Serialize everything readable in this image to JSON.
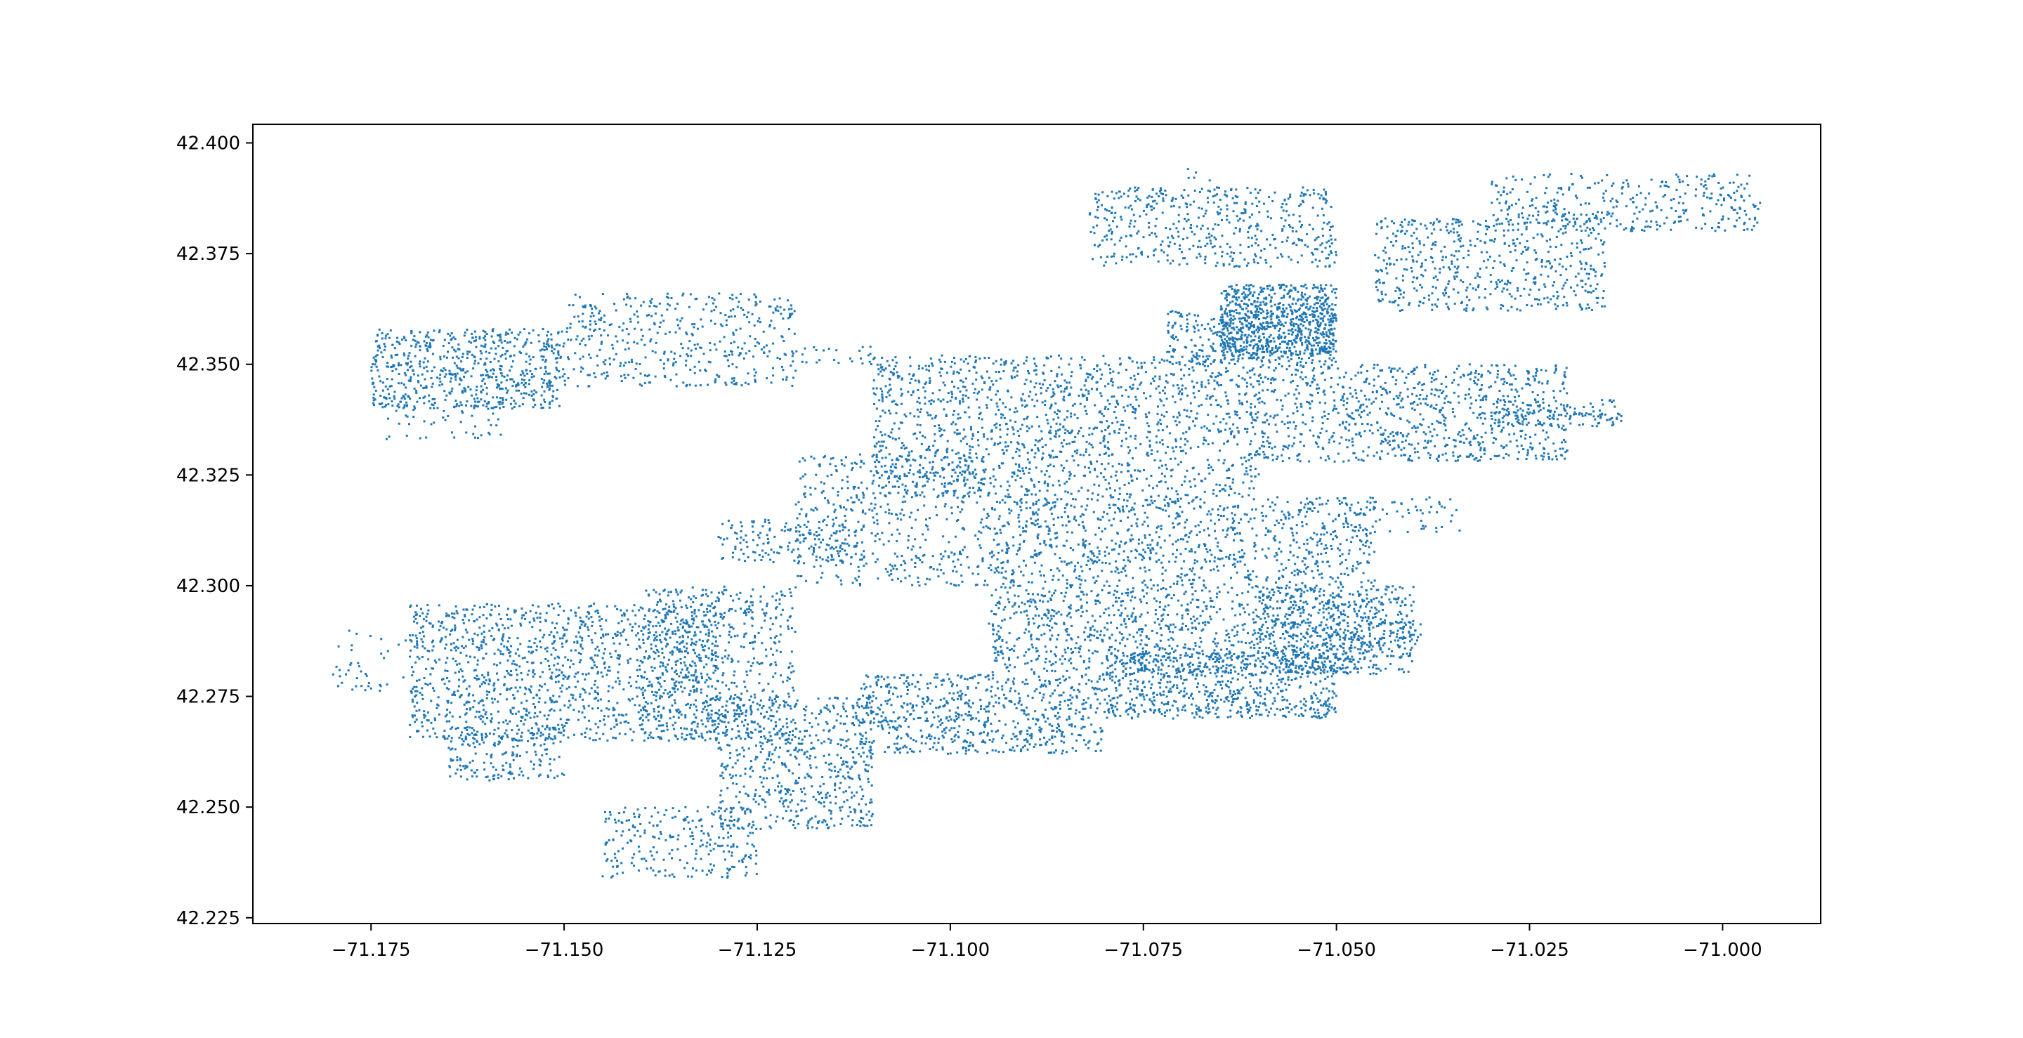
{
  "chart_data": {
    "type": "scatter",
    "title": "",
    "xlabel": "",
    "ylabel": "",
    "xlim": [
      -71.1903,
      -70.9873
    ],
    "ylim": [
      42.2237,
      42.4042
    ],
    "grid": false,
    "legend": "none",
    "series_color": "#1f77b4",
    "x_ticks": [
      -71.175,
      -71.15,
      -71.125,
      -71.1,
      -71.075,
      -71.05,
      -71.025,
      -71.0
    ],
    "x_tick_labels": [
      "−71.175",
      "−71.150",
      "−71.125",
      "−71.100",
      "−71.075",
      "−71.050",
      "−71.025",
      "−71.000"
    ],
    "y_ticks": [
      42.225,
      42.25,
      42.275,
      42.3,
      42.325,
      42.35,
      42.375,
      42.4
    ],
    "y_tick_labels": [
      "42.225",
      "42.250",
      "42.275",
      "42.300",
      "42.325",
      "42.350",
      "42.375",
      "42.400"
    ],
    "cluster_note_shape": "point clouds sampled from regions listed in clusters",
    "clusters": [
      {
        "x": [
          -71.175,
          -71.15
        ],
        "y": [
          42.34,
          42.358
        ],
        "n": 650
      },
      {
        "x": [
          -71.15,
          -71.12
        ],
        "y": [
          42.345,
          42.366
        ],
        "n": 450
      },
      {
        "x": [
          -71.174,
          -71.158
        ],
        "y": [
          42.333,
          42.343
        ],
        "n": 60
      },
      {
        "x": [
          -71.12,
          -71.11
        ],
        "y": [
          42.35,
          42.354
        ],
        "n": 25
      },
      {
        "x": [
          -71.082,
          -71.05
        ],
        "y": [
          42.372,
          42.39
        ],
        "n": 500
      },
      {
        "x": [
          -71.07,
          -71.066
        ],
        "y": [
          42.391,
          42.395
        ],
        "n": 5
      },
      {
        "x": [
          -71.065,
          -71.05
        ],
        "y": [
          42.352,
          42.368
        ],
        "n": 700
      },
      {
        "x": [
          -71.072,
          -71.05
        ],
        "y": [
          42.35,
          42.362
        ],
        "n": 350
      },
      {
        "x": [
          -71.045,
          -71.015
        ],
        "y": [
          42.362,
          42.383
        ],
        "n": 550
      },
      {
        "x": [
          -71.03,
          -70.995
        ],
        "y": [
          42.38,
          42.393
        ],
        "n": 350
      },
      {
        "x": [
          -71.11,
          -71.06
        ],
        "y": [
          42.32,
          42.352
        ],
        "n": 1500
      },
      {
        "x": [
          -71.12,
          -71.095
        ],
        "y": [
          42.3,
          42.33
        ],
        "n": 500
      },
      {
        "x": [
          -71.06,
          -71.02
        ],
        "y": [
          42.328,
          42.35
        ],
        "n": 900
      },
      {
        "x": [
          -71.03,
          -71.013
        ],
        "y": [
          42.336,
          42.342
        ],
        "n": 120
      },
      {
        "x": [
          -71.05,
          -71.034
        ],
        "y": [
          42.312,
          42.32
        ],
        "n": 60
      },
      {
        "x": [
          -71.095,
          -71.045
        ],
        "y": [
          42.28,
          42.32
        ],
        "n": 2000
      },
      {
        "x": [
          -71.06,
          -71.04
        ],
        "y": [
          42.28,
          42.3
        ],
        "n": 500
      },
      {
        "x": [
          -71.045,
          -71.039
        ],
        "y": [
          42.285,
          42.292
        ],
        "n": 40
      },
      {
        "x": [
          -71.17,
          -71.13
        ],
        "y": [
          42.265,
          42.296
        ],
        "n": 1300
      },
      {
        "x": [
          -71.14,
          -71.12
        ],
        "y": [
          42.265,
          42.3
        ],
        "n": 600
      },
      {
        "x": [
          -71.13,
          -71.11
        ],
        "y": [
          42.245,
          42.275
        ],
        "n": 600
      },
      {
        "x": [
          -71.145,
          -71.125
        ],
        "y": [
          42.234,
          42.25
        ],
        "n": 250
      },
      {
        "x": [
          -71.165,
          -71.15
        ],
        "y": [
          42.256,
          42.268
        ],
        "n": 180
      },
      {
        "x": [
          -71.112,
          -71.08
        ],
        "y": [
          42.262,
          42.28
        ],
        "n": 700
      },
      {
        "x": [
          -71.08,
          -71.05
        ],
        "y": [
          42.27,
          42.285
        ],
        "n": 700
      },
      {
        "x": [
          -71.13,
          -71.112
        ],
        "y": [
          42.305,
          42.315
        ],
        "n": 150
      },
      {
        "x": [
          -71.18,
          -71.17
        ],
        "y": [
          42.276,
          42.29
        ],
        "n": 40
      }
    ]
  }
}
